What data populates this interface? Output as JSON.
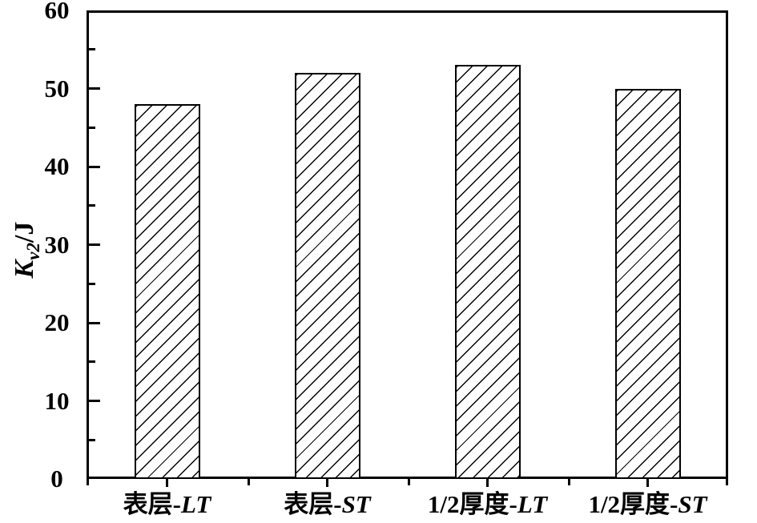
{
  "figure": {
    "background": "#ffffff",
    "line_color": "#000000"
  },
  "chart_data": {
    "type": "bar",
    "title": "",
    "xlabel": "",
    "ylabel": "Kv2/J",
    "ylabel_parts": {
      "symbol": "K",
      "subscript": "v2",
      "unit": "/J"
    },
    "categories": [
      "表层-LT",
      "表层-ST",
      "1/2厚度-LT",
      "1/2厚度-ST"
    ],
    "category_parts": [
      {
        "prefix": "表层-",
        "italic": "LT"
      },
      {
        "prefix": "表层-",
        "italic": "ST"
      },
      {
        "prefix": "1/2厚度-",
        "italic": "LT"
      },
      {
        "prefix": "1/2厚度-",
        "italic": "ST"
      }
    ],
    "values": [
      48,
      52,
      53,
      50
    ],
    "ylim": [
      0,
      60
    ],
    "ytick_values": [
      0,
      10,
      20,
      30,
      40,
      50,
      60
    ],
    "ytick_labels": [
      "0",
      "10",
      "20",
      "30",
      "40",
      "50",
      "60"
    ],
    "ytick_minor": [
      5,
      15,
      25,
      35,
      45,
      55
    ],
    "grid": false,
    "legend": null,
    "bar_fill": "#ffffff",
    "bar_hatch": "forward-diagonal",
    "bar_edge_color": "#000000",
    "frame": "full-box"
  }
}
